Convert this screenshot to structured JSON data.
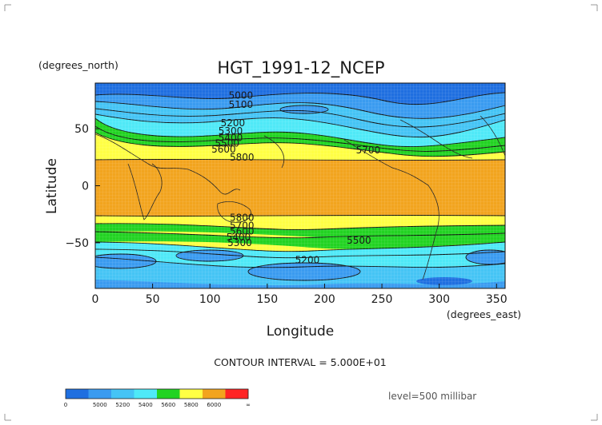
{
  "chart_data": {
    "type": "heatmap",
    "title": "HGT_1991-12_NCEP",
    "xlabel": "Longitude",
    "ylabel": "Latitude",
    "x_units": "(degrees_east)",
    "y_units": "(degrees_north)",
    "xlim": [
      0,
      357.5
    ],
    "ylim": [
      -90,
      90
    ],
    "x_ticks": [
      "0",
      "50",
      "100",
      "150",
      "200",
      "250",
      "300",
      "350"
    ],
    "y_ticks": [
      "50",
      "0",
      "−50"
    ],
    "grid": true,
    "contour_interval_label": "CONTOUR INTERVAL = 5.000E+01",
    "level_label": "level=500 millibar",
    "colorbar": {
      "tick_labels": [
        "0",
        "5000",
        "5200",
        "5400",
        "5600",
        "5800",
        "6000",
        "∞"
      ],
      "colors": [
        "#1f6fe0",
        "#3a9bf0",
        "#45c4f5",
        "#4fe9f7",
        "#22d322",
        "#ffff44",
        "#f2a41e",
        "#ff2424"
      ]
    },
    "contour_labels": [
      {
        "text": "5000",
        "lon": 127,
        "lat": 79
      },
      {
        "text": "5100",
        "lon": 127,
        "lat": 71
      },
      {
        "text": "5200",
        "lon": 120,
        "lat": 55
      },
      {
        "text": "5300",
        "lon": 118,
        "lat": 48
      },
      {
        "text": "5400",
        "lon": 118,
        "lat": 42
      },
      {
        "text": "5500",
        "lon": 115,
        "lat": 37
      },
      {
        "text": "5600",
        "lon": 112,
        "lat": 32
      },
      {
        "text": "5800",
        "lon": 128,
        "lat": 25
      },
      {
        "text": "5700",
        "lon": 238,
        "lat": 31
      },
      {
        "text": "5800",
        "lon": 128,
        "lat": -28
      },
      {
        "text": "5700",
        "lon": 128,
        "lat": -35
      },
      {
        "text": "5600",
        "lon": 128,
        "lat": -40
      },
      {
        "text": "5400",
        "lon": 125,
        "lat": -45
      },
      {
        "text": "5300",
        "lon": 126,
        "lat": -50
      },
      {
        "text": "5500",
        "lon": 230,
        "lat": -48
      },
      {
        "text": "5200",
        "lon": 185,
        "lat": -65
      }
    ]
  }
}
